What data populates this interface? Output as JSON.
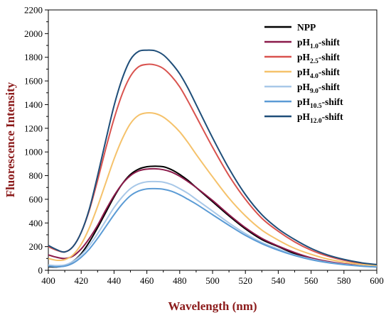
{
  "chart_data": {
    "type": "line",
    "title": "",
    "xlabel": "Wavelength (nm)",
    "ylabel": "Fluorescence Intensity",
    "xlim": [
      400,
      600
    ],
    "ylim": [
      0,
      2200
    ],
    "x_ticks": [
      400,
      420,
      440,
      460,
      480,
      500,
      520,
      540,
      560,
      580,
      600
    ],
    "y_ticks": [
      0,
      200,
      400,
      600,
      800,
      1000,
      1200,
      1400,
      1600,
      1800,
      2000,
      2200
    ],
    "grid": false,
    "legend_position": "top-right",
    "x": [
      400,
      405,
      410,
      415,
      420,
      425,
      430,
      435,
      440,
      445,
      450,
      455,
      460,
      465,
      470,
      475,
      480,
      485,
      490,
      500,
      510,
      520,
      530,
      540,
      550,
      560,
      570,
      580,
      590,
      600
    ],
    "series": [
      {
        "name": "NPP",
        "name_base": "NPP",
        "name_sub": "",
        "name_suffix": "",
        "color": "#000000",
        "values": [
          30,
          28,
          40,
          75,
          140,
          240,
          360,
          490,
          620,
          730,
          810,
          855,
          875,
          880,
          875,
          850,
          810,
          760,
          700,
          580,
          460,
          350,
          260,
          200,
          140,
          100,
          70,
          50,
          38,
          30
        ]
      },
      {
        "name": "pH1.0-shift",
        "name_base": "pH",
        "name_sub": "1.0",
        "name_suffix": "-shift",
        "color": "#8b1a4a",
        "values": [
          130,
          110,
          100,
          120,
          180,
          270,
          380,
          510,
          630,
          730,
          800,
          840,
          855,
          858,
          850,
          830,
          795,
          750,
          700,
          590,
          470,
          360,
          270,
          205,
          150,
          105,
          75,
          55,
          42,
          35
        ]
      },
      {
        "name": "pH2.5-shift",
        "name_base": "pH",
        "name_sub": "2.5",
        "name_suffix": "-shift",
        "color": "#d9534f",
        "values": [
          200,
          170,
          155,
          200,
          320,
          510,
          760,
          1030,
          1280,
          1490,
          1640,
          1720,
          1740,
          1735,
          1705,
          1640,
          1550,
          1430,
          1300,
          1040,
          800,
          600,
          440,
          330,
          240,
          170,
          120,
          85,
          60,
          45
        ]
      },
      {
        "name": "pH4.0-shift",
        "name_base": "pH",
        "name_sub": "4.0",
        "name_suffix": "-shift",
        "color": "#f5c26b",
        "values": [
          100,
          85,
          90,
          130,
          220,
          360,
          540,
          740,
          940,
          1110,
          1240,
          1310,
          1330,
          1325,
          1295,
          1240,
          1170,
          1080,
          980,
          790,
          610,
          460,
          340,
          255,
          185,
          135,
          95,
          70,
          50,
          40
        ]
      },
      {
        "name": "pH9.0-shift",
        "name_base": "pH",
        "name_sub": "9.0",
        "name_suffix": "-shift",
        "color": "#a8c8e8",
        "values": [
          45,
          40,
          45,
          75,
          130,
          210,
          310,
          420,
          530,
          620,
          690,
          730,
          748,
          750,
          745,
          725,
          690,
          650,
          600,
          500,
          400,
          310,
          235,
          180,
          130,
          95,
          68,
          50,
          38,
          30
        ]
      },
      {
        "name": "pH10.5-shift",
        "name_base": "pH",
        "name_sub": "10.5",
        "name_suffix": "-shift",
        "color": "#5b9bd5",
        "values": [
          35,
          30,
          35,
          60,
          110,
          180,
          270,
          370,
          470,
          560,
          630,
          670,
          688,
          690,
          685,
          668,
          638,
          600,
          560,
          470,
          380,
          295,
          225,
          170,
          125,
          90,
          65,
          48,
          36,
          28
        ]
      },
      {
        "name": "pH12.0-shift",
        "name_base": "pH",
        "name_sub": "12.0",
        "name_suffix": "-shift",
        "color": "#1f4e79",
        "values": [
          210,
          175,
          155,
          200,
          320,
          520,
          800,
          1100,
          1390,
          1620,
          1780,
          1850,
          1860,
          1855,
          1820,
          1750,
          1660,
          1540,
          1400,
          1120,
          860,
          640,
          470,
          350,
          260,
          185,
          130,
          92,
          65,
          48
        ]
      }
    ]
  }
}
